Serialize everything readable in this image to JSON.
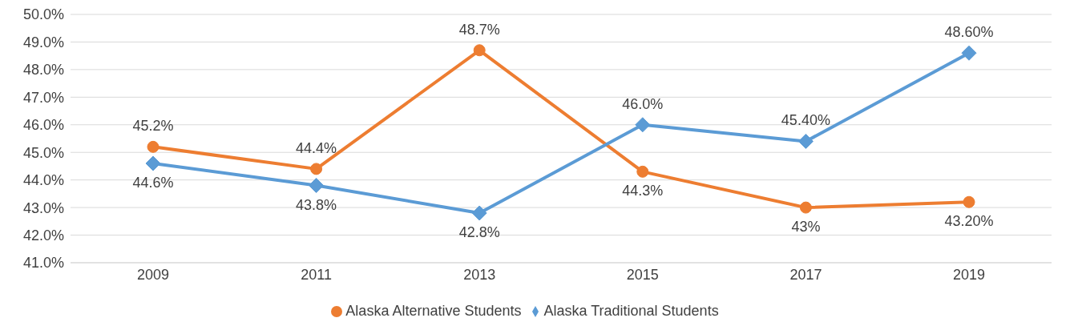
{
  "chart_data": {
    "type": "line",
    "categories": [
      "2009",
      "2011",
      "2013",
      "2015",
      "2017",
      "2019"
    ],
    "series": [
      {
        "name": "Alaska Alternative Students",
        "color": "#ed7d31",
        "marker": "circle",
        "values": [
          45.2,
          44.4,
          48.7,
          44.3,
          43,
          43.2
        ],
        "value_labels": [
          "45.2%",
          "44.4%",
          "48.7%",
          "44.3%",
          "43%",
          "43.20%"
        ]
      },
      {
        "name": "Alaska Traditional Students",
        "color": "#5b9bd5",
        "marker": "diamond",
        "values": [
          44.6,
          43.8,
          42.8,
          46.0,
          45.4,
          48.6
        ],
        "value_labels": [
          "44.6%",
          "43.8%",
          "42.8%",
          "46.0%",
          "45.40%",
          "48.60%"
        ]
      }
    ],
    "ylim": [
      41,
      50
    ],
    "yticks": [
      {
        "value": 41,
        "label": "41.0%"
      },
      {
        "value": 42,
        "label": "42.0%"
      },
      {
        "value": 43,
        "label": "43.0%"
      },
      {
        "value": 44,
        "label": "44.0%"
      },
      {
        "value": 45,
        "label": "45.0%"
      },
      {
        "value": 46,
        "label": "46.0%"
      },
      {
        "value": 47,
        "label": "47.0%"
      },
      {
        "value": 48,
        "label": "48.0%"
      },
      {
        "value": 49,
        "label": "49.0%"
      },
      {
        "value": 50,
        "label": "50.0%"
      }
    ],
    "grid": "y",
    "legend": "bottom"
  }
}
